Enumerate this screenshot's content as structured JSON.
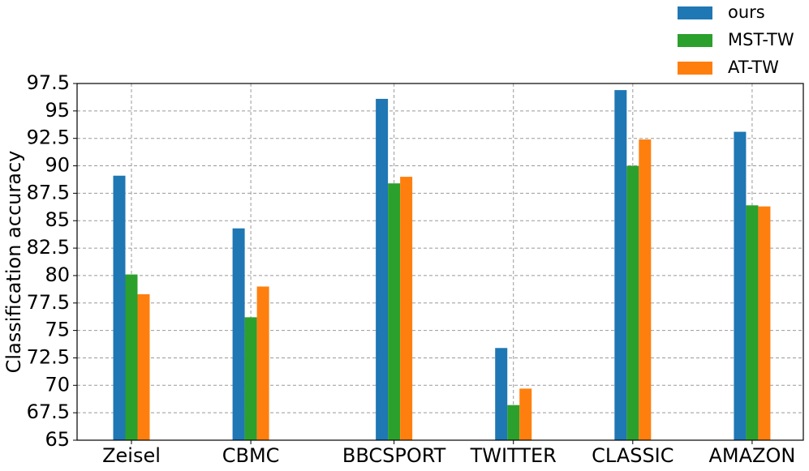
{
  "chart_data": {
    "type": "bar",
    "y_label": "Classification accuracy",
    "categories": [
      "Zeisel",
      "CBMC",
      "BBCSPORT",
      "TWITTER",
      "CLASSIC",
      "AMAZON"
    ],
    "series": [
      {
        "name": "ours",
        "color": "#1f77b4",
        "values": [
          89.1,
          84.3,
          96.1,
          73.4,
          96.9,
          93.1
        ]
      },
      {
        "name": "MST-TW",
        "color": "#2ca02c",
        "values": [
          80.1,
          76.2,
          88.4,
          68.2,
          90.0,
          86.4
        ]
      },
      {
        "name": "AT-TW",
        "color": "#ff7f0e",
        "values": [
          78.3,
          79.0,
          89.0,
          69.7,
          92.4,
          86.3
        ]
      }
    ],
    "ylim": [
      65,
      97.5
    ],
    "yticks": [
      65,
      67.5,
      70,
      72.5,
      75,
      77.5,
      80,
      82.5,
      85,
      87.5,
      90,
      92.5,
      95,
      97.5
    ],
    "grid": true,
    "legend": "upper right"
  }
}
